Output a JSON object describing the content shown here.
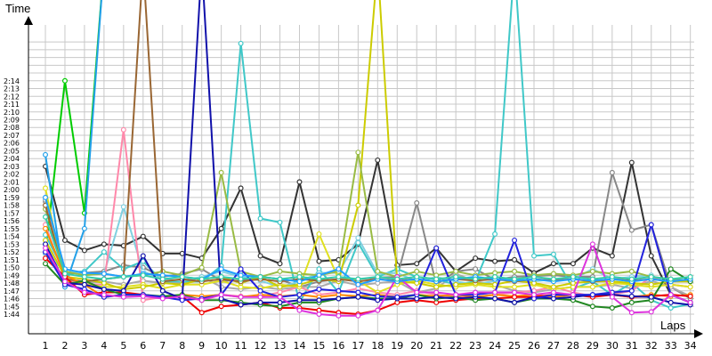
{
  "chart_data": {
    "type": "line",
    "ylabel": "Time",
    "xlabel": "Laps",
    "grid": true,
    "legend": "none",
    "x": [
      1,
      2,
      3,
      4,
      5,
      6,
      7,
      8,
      9,
      10,
      11,
      12,
      13,
      14,
      15,
      16,
      17,
      18,
      19,
      20,
      21,
      22,
      23,
      24,
      25,
      26,
      27,
      28,
      29,
      30,
      31,
      32,
      33,
      34
    ],
    "x_ticks": [
      "1",
      "2",
      "3",
      "4",
      "5",
      "6",
      "7",
      "8",
      "9",
      "10",
      "11",
      "12",
      "13",
      "14",
      "15",
      "16",
      "17",
      "18",
      "19",
      "20",
      "21",
      "22",
      "23",
      "24",
      "25",
      "26",
      "27",
      "28",
      "29",
      "30",
      "31",
      "32",
      "33",
      "34"
    ],
    "y_ticks": [
      "1:44",
      "1:45",
      "1:46",
      "1:47",
      "1:48",
      "1:49",
      "1:50",
      "1:51",
      "1:52",
      "1:53",
      "1:54",
      "1:55",
      "1:56",
      "1:57",
      "1:58",
      "1:59",
      "2:00",
      "2:01",
      "2:02",
      "2:03",
      "2:04",
      "2:05",
      "2:06",
      "2:07",
      "2:08",
      "2:09",
      "2:10",
      "2:11",
      "2:12",
      "2:13",
      "2:14"
    ],
    "ylim": [
      "1:43",
      "2:19"
    ],
    "series": [
      {
        "color": "#333333",
        "values": [
          123,
          113.5,
          112.2,
          113,
          112.8,
          114,
          111.8,
          111.8,
          111.2,
          115,
          120.2,
          111.5,
          110.5,
          121,
          110.8,
          111,
          113,
          123.8,
          110.3,
          110.5,
          112.5,
          109.5,
          111.2,
          110.8,
          111,
          109.3,
          110.5,
          110.5,
          112.5,
          111.5,
          123.5,
          111.5,
          106.5,
          105.5
        ]
      },
      {
        "color": "#888888",
        "values": [
          118.5,
          109.2,
          109.3,
          109.5,
          110.3,
          110,
          108.8,
          109.2,
          109.8,
          108.3,
          108.3,
          108.8,
          108.5,
          107.5,
          108.2,
          108.5,
          108.5,
          108.7,
          108.8,
          118.3,
          107.8,
          109.5,
          109.8,
          108.4,
          108.8,
          108.9,
          109,
          108.8,
          108.8,
          122.2,
          114.8,
          115.5,
          107.5,
          106
        ]
      },
      {
        "color": "#aaaaaa",
        "values": [
          118.7,
          108.5,
          108,
          108.2,
          107.8,
          108.3,
          108,
          108,
          108.8,
          107.5,
          107.2,
          107.5,
          107.2,
          107.5,
          107.5,
          108.3,
          107.7,
          108,
          108.2,
          106.8,
          107.3,
          109.2,
          108.2,
          107.8,
          107,
          106.8,
          107.2,
          107.5,
          107.5,
          107.8,
          107.3,
          108.3,
          107.5,
          106.3
        ]
      },
      {
        "color": "#00cc00",
        "values": [
          111.8,
          134,
          117,
          150,
          150,
          150,
          150,
          150,
          150,
          150,
          150,
          150,
          150,
          150,
          150,
          150,
          150,
          150,
          150,
          150,
          150,
          150,
          150,
          150,
          150,
          150,
          150,
          150,
          150,
          150,
          150,
          150,
          150,
          150
        ]
      },
      {
        "color": "#22a0e8",
        "values": [
          124.5,
          107.5,
          115,
          150,
          150,
          150,
          150,
          150,
          150,
          150,
          150,
          150,
          150,
          150,
          150,
          150,
          150,
          150,
          150,
          150,
          150,
          150,
          150,
          150,
          150,
          150,
          150,
          150,
          150,
          150,
          150,
          150,
          150,
          150
        ]
      },
      {
        "color": "#40c8c8",
        "values": [
          114.2,
          109.3,
          109.5,
          112,
          109.8,
          110.8,
          108.2,
          108.2,
          108.2,
          110.2,
          138.8,
          116.3,
          115.8,
          105.5,
          109.8,
          106.8,
          113.2,
          108.8,
          109.8,
          108.8,
          108.5,
          107.8,
          108.2,
          114.3,
          150,
          111.5,
          111.7,
          107.3,
          108.2,
          106.5,
          108,
          105.8,
          104.8,
          105.3
        ]
      },
      {
        "color": "#7fd0e0",
        "values": [
          111.8,
          109.5,
          109.2,
          109.2,
          117.8,
          109.5,
          108.5,
          108.3,
          108.8,
          109.5,
          108.8,
          108.3,
          107.5,
          108.2,
          109.3,
          109.3,
          113.8,
          109.2,
          109.3,
          108.2,
          108.8,
          108.2,
          107.8,
          108.3,
          108.5,
          108.2,
          108.5,
          108.5,
          109.8,
          108.5,
          108.8,
          109,
          107.8,
          107.5
        ]
      },
      {
        "color": "#ff88aa",
        "values": [
          115.5,
          108.5,
          107.8,
          107.8,
          127.7,
          105.8,
          106.2,
          106.2,
          105.8,
          106.5,
          106.3,
          106.3,
          106.8,
          107.5,
          106.5,
          106.8,
          107.3,
          106.8,
          106.5,
          107,
          106.5,
          106.2,
          106.2,
          106.5,
          106.8,
          107,
          107.5,
          106.8,
          106.3,
          106.5,
          107,
          108.8,
          107.8,
          107.5
        ]
      },
      {
        "color": "#e0e020",
        "values": [
          120.2,
          108.2,
          107.8,
          107.5,
          107.5,
          107.8,
          107.3,
          107.8,
          107.8,
          108.3,
          107.5,
          107.3,
          107.8,
          107.5,
          114.3,
          108.5,
          108.3,
          106.8,
          107.8,
          108.3,
          107.8,
          107.5,
          107.8,
          107.5,
          107.5,
          107.8,
          107.2,
          107.5,
          107.5,
          108,
          107.8,
          107.5,
          107.8,
          107.5
        ]
      },
      {
        "color": "#cccc00",
        "values": [
          113.5,
          108.8,
          108.5,
          108,
          107.2,
          107.5,
          108,
          107.8,
          108.5,
          108.8,
          108,
          108.8,
          107.5,
          107.8,
          108.5,
          108.2,
          118,
          150,
          108.2,
          108,
          107.5,
          107.8,
          108,
          107.8,
          108.3,
          108,
          107.5,
          108,
          108.2,
          108.2,
          108,
          107.8,
          108.2,
          108.2
        ]
      },
      {
        "color": "#99bb44",
        "values": [
          117.5,
          109.5,
          109,
          109.2,
          108.8,
          109,
          109.5,
          109,
          110,
          122.2,
          109.5,
          108.8,
          109.5,
          109.2,
          109,
          109.5,
          124.8,
          109.5,
          108.8,
          109.5,
          109,
          109.5,
          109,
          109.3,
          109.5,
          109,
          109.2,
          109,
          109.5,
          109.2,
          109.5,
          108.8,
          108.5,
          108.3
        ]
      },
      {
        "color": "#996633",
        "values": [
          118,
          108.5,
          108.2,
          108.5,
          108.8,
          150,
          108.2,
          108.5,
          108.2,
          108.5,
          108.2,
          108.5,
          108.2,
          108.5,
          108.3,
          108.5,
          108.2,
          108.5,
          108.3,
          108.5,
          108.2,
          108.5,
          108.3,
          108.5,
          108.2,
          108.5,
          108.3,
          108.5,
          108.2,
          108.5,
          108.3,
          108.5,
          108.2,
          108.5
        ]
      },
      {
        "color": "#ff8800",
        "values": [
          115,
          109,
          107.8,
          106.2,
          106.5,
          106.5,
          106.2,
          106.5,
          106.3,
          106.5,
          106.2,
          106.5,
          106.3,
          106.5,
          106.2,
          106.5,
          106.3,
          106.5,
          106.2,
          106.5,
          106.3,
          106.5,
          106.2,
          106.5,
          106.3,
          106.5,
          106.2,
          106.5,
          106.3,
          106.5,
          106.2,
          106.5,
          106.3,
          106.5
        ]
      },
      {
        "color": "#ee0000",
        "values": [
          111.2,
          108.8,
          106.5,
          106.8,
          106.8,
          106.5,
          106.2,
          106.3,
          104.2,
          105,
          105.2,
          105.5,
          104.8,
          104.8,
          104.5,
          104.2,
          104,
          104.5,
          105.5,
          105.8,
          105.5,
          105.8,
          106,
          106,
          106.2,
          106.2,
          106.5,
          106.5,
          106.2,
          106.5,
          106.2,
          106.3,
          106.5,
          106.3
        ]
      },
      {
        "color": "#228822",
        "values": [
          110.5,
          107.8,
          108.3,
          107.2,
          106.5,
          106.5,
          106.3,
          106.5,
          105.8,
          105.8,
          105.5,
          105.2,
          105,
          105.5,
          105.5,
          106,
          106.2,
          106,
          106,
          106.5,
          106,
          106.2,
          105.8,
          106,
          105.5,
          106,
          106,
          105.8,
          105,
          104.8,
          105.5,
          105.8,
          109.8,
          108.2
        ]
      },
      {
        "color": "#1111aa",
        "values": [
          113,
          108,
          107.8,
          107.2,
          107,
          111.5,
          107,
          106,
          150,
          106,
          105.2,
          105.5,
          105.5,
          105.8,
          105.8,
          106,
          106.2,
          105.8,
          106,
          106,
          106.2,
          106,
          106.2,
          106,
          105.5,
          106.2,
          106,
          106.2,
          106.5,
          106.5,
          106.3,
          106.2,
          105.5,
          105.2
        ]
      },
      {
        "color": "#2222dd",
        "values": [
          112,
          107.8,
          107.2,
          106.2,
          106.5,
          106.5,
          106.2,
          105.8,
          106,
          106.5,
          109.8,
          107,
          106.2,
          106.5,
          107.2,
          107,
          106.8,
          106.3,
          106.2,
          106.5,
          112.5,
          106.5,
          106.5,
          106.8,
          113.5,
          106,
          106.5,
          106.5,
          106.5,
          106.8,
          107,
          115.5,
          106.5,
          105.5
        ]
      },
      {
        "color": "#dd33dd",
        "values": [
          112.5,
          108.2,
          106.8,
          106.5,
          106.2,
          106.3,
          106,
          106.3,
          105.8,
          106.5,
          106.2,
          106.2,
          106.2,
          104.5,
          104,
          103.8,
          103.8,
          104.5,
          108.8,
          106.8,
          106.8,
          106.5,
          106.8,
          106.8,
          106.8,
          106.5,
          106.8,
          106.5,
          113,
          106.2,
          104.2,
          104.3,
          106.5,
          105.5
        ]
      },
      {
        "color": "#1f9fff",
        "values": [
          119,
          109.8,
          109.3,
          109.2,
          108.8,
          109.2,
          109,
          108.8,
          108.5,
          109.8,
          109,
          108.8,
          108.5,
          108.2,
          109,
          109.8,
          107.8,
          108.5,
          108.2,
          108.5,
          108.2,
          108.5,
          108.8,
          108.5,
          108.3,
          108.5,
          108.2,
          108.5,
          108.3,
          108.5,
          108.2,
          108.5,
          108.2,
          108.5
        ]
      },
      {
        "color": "#33ccaa",
        "values": [
          116.5,
          109.2,
          108.8,
          108.5,
          108.8,
          109,
          108.5,
          108.8,
          108.5,
          108.8,
          108.5,
          108.8,
          108.5,
          108.8,
          108.5,
          108.8,
          108.5,
          108.8,
          108.5,
          108.8,
          108.5,
          108.8,
          108.5,
          108.8,
          108.5,
          108.8,
          108.5,
          108.8,
          108.5,
          108.8,
          108.5,
          108.8,
          108.5,
          108.8
        ]
      }
    ]
  }
}
